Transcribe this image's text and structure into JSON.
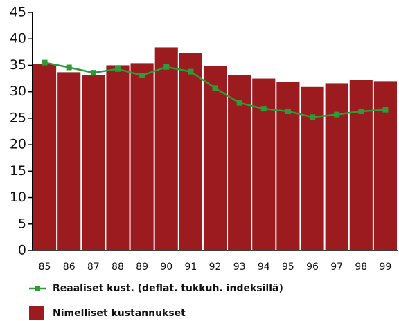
{
  "chart_data": {
    "type": "bar",
    "categories": [
      "85",
      "86",
      "87",
      "88",
      "89",
      "90",
      "91",
      "92",
      "93",
      "94",
      "95",
      "96",
      "97",
      "98",
      "99"
    ],
    "series": [
      {
        "name": "Reaaliset kust. (deflat. tukkuh. indeksillä)",
        "type": "line",
        "color": "#2e9a3a",
        "values": [
          35.5,
          34.6,
          33.6,
          34.3,
          33.1,
          34.7,
          33.8,
          30.7,
          27.9,
          26.8,
          26.3,
          25.2,
          25.7,
          26.3,
          26.6
        ]
      },
      {
        "name": "Nimelliset kustannukset",
        "type": "bar",
        "color": "#9b1b1f",
        "values": [
          35.3,
          33.7,
          33.1,
          35.0,
          35.4,
          38.4,
          37.4,
          34.9,
          33.2,
          32.5,
          31.9,
          30.9,
          31.6,
          32.2,
          32.0
        ]
      }
    ],
    "ylim": [
      0,
      45
    ],
    "yticks": [
      0,
      5,
      10,
      15,
      20,
      25,
      30,
      35,
      40,
      45
    ]
  }
}
